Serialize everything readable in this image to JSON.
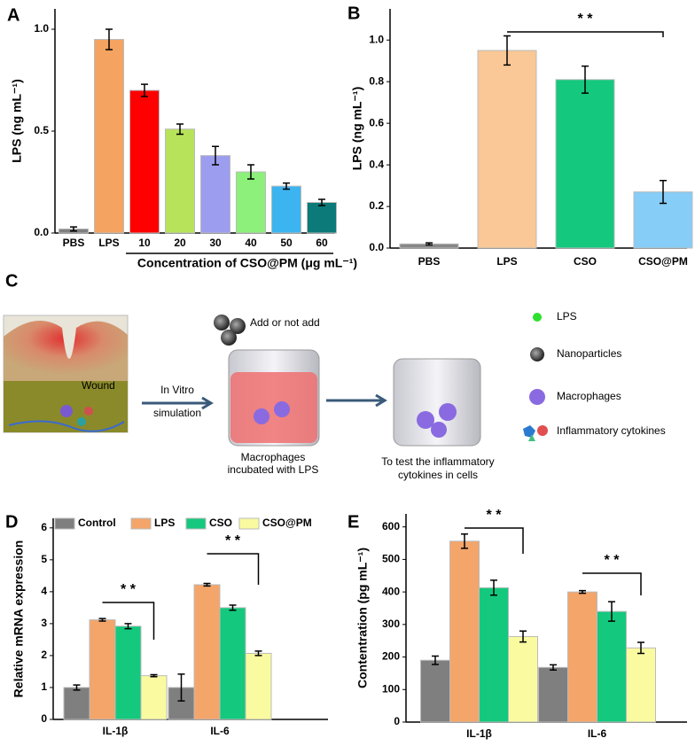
{
  "chart_data": [
    {
      "type": "bar",
      "label": "A",
      "ylabel": "LPS (ng mL⁻¹)",
      "xlabel": "Concentration of CSO@PM (μg mL⁻¹)",
      "categories": [
        "PBS",
        "LPS",
        "10",
        "20",
        "30",
        "40",
        "50",
        "60"
      ],
      "values": [
        0.02,
        0.95,
        0.7,
        0.51,
        0.38,
        0.3,
        0.23,
        0.15
      ],
      "errors": [
        0.01,
        0.05,
        0.03,
        0.025,
        0.045,
        0.035,
        0.015,
        0.015
      ],
      "colors": [
        "#7f7f7f",
        "#f4a460",
        "#ff0000",
        "#b7e35a",
        "#9d9df0",
        "#8cf07a",
        "#3cb4f0",
        "#0b7a78"
      ],
      "ylim": [
        0,
        1.1
      ],
      "yticks": [
        {
          "value": 0,
          "label": "0.0"
        },
        {
          "value": 0.5,
          "label": "0.5"
        },
        {
          "value": 1,
          "label": "1.0"
        }
      ]
    },
    {
      "type": "bar",
      "label": "B",
      "ylabel": "LPS (ng mL⁻¹)",
      "categories": [
        "PBS",
        "LPS",
        "CSO",
        "CSO@PM"
      ],
      "values": [
        0.02,
        0.95,
        0.81,
        0.27
      ],
      "errors": [
        0.005,
        0.07,
        0.065,
        0.055
      ],
      "colors": [
        "#888888",
        "#f9c896",
        "#14c97e",
        "#86cdf7"
      ],
      "ylim": [
        0,
        1.15
      ],
      "yticks": [
        {
          "value": 0,
          "label": "0.0"
        },
        {
          "value": 0.2,
          "label": "0.2"
        },
        {
          "value": 0.4,
          "label": "0.4"
        },
        {
          "value": 0.6,
          "label": "0.6"
        },
        {
          "value": 0.8,
          "label": "0.8"
        },
        {
          "value": 1,
          "label": "1.0"
        }
      ],
      "annotations": [
        {
          "text": "* *"
        }
      ]
    },
    {
      "type": "bar",
      "label": "D",
      "ylabel": "Relative mRNA expression",
      "legend": "top",
      "categories": [
        "IL-1β",
        "IL-6"
      ],
      "series": [
        {
          "name": "Control",
          "color": "#7f7f7f",
          "values": [
            1.0,
            1.0
          ],
          "errors": [
            0.08,
            0.42
          ]
        },
        {
          "name": "LPS",
          "color": "#f4a56a",
          "values": [
            3.12,
            4.22
          ],
          "errors": [
            0.04,
            0.04
          ]
        },
        {
          "name": "CSO",
          "color": "#14c97e",
          "values": [
            2.92,
            3.5
          ],
          "errors": [
            0.08,
            0.08
          ]
        },
        {
          "name": "CSO@PM",
          "color": "#fafaa0",
          "values": [
            1.37,
            2.07
          ],
          "errors": [
            0.03,
            0.07
          ]
        }
      ],
      "ylim": [
        0,
        6.3
      ],
      "yticks": [
        0,
        1,
        2,
        3,
        4,
        5,
        6
      ],
      "annotations": [
        {
          "text": "* *"
        },
        {
          "text": "* *"
        }
      ]
    },
    {
      "type": "bar",
      "label": "E",
      "ylabel": "Contentration (pg mL⁻¹)",
      "legend": "none",
      "categories": [
        "IL-1β",
        "IL-6"
      ],
      "series": [
        {
          "name": "Control",
          "color": "#7f7f7f",
          "values": [
            190,
            168
          ],
          "errors": [
            13,
            8
          ]
        },
        {
          "name": "LPS",
          "color": "#f4a56a",
          "values": [
            556,
            400
          ],
          "errors": [
            22,
            4
          ]
        },
        {
          "name": "CSO",
          "color": "#14c97e",
          "values": [
            413,
            340
          ],
          "errors": [
            23,
            30
          ]
        },
        {
          "name": "CSO@PM",
          "color": "#fafaa0",
          "values": [
            263,
            228
          ],
          "errors": [
            17,
            17
          ]
        }
      ],
      "ylim": [
        0,
        640
      ],
      "yticks": [
        0,
        100,
        200,
        300,
        400,
        500,
        600
      ],
      "annotations": [
        {
          "text": "* *"
        },
        {
          "text": "* *"
        }
      ]
    }
  ],
  "diagram": {
    "label": "C",
    "wound": "Wound",
    "step": [
      "In Vitro",
      "simulation"
    ],
    "add": "Add or not add",
    "caption1": [
      "Macrophages",
      "incubated with LPS"
    ],
    "caption2": [
      "To test the inflammatory",
      "cytokines in cells"
    ],
    "legend": [
      "LPS",
      "Nanoparticles",
      "Macrophages",
      "Inflammatory cytokines"
    ]
  }
}
